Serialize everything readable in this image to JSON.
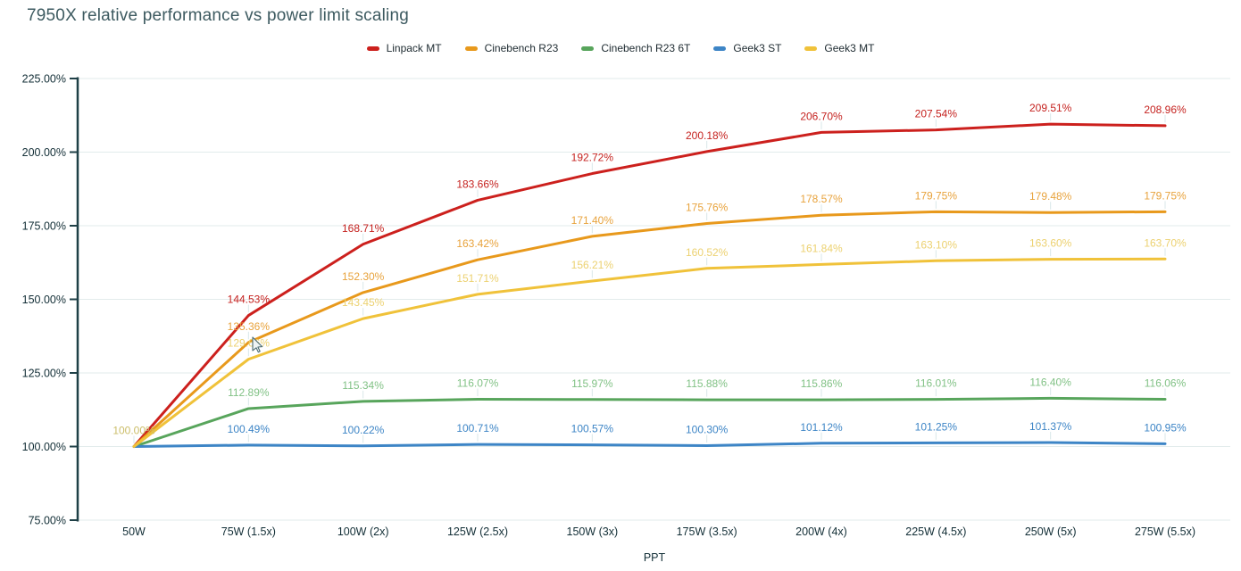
{
  "title": "7950X relative performance vs power limit scaling",
  "chart_data": {
    "type": "line",
    "title": "7950X relative performance vs power limit scaling",
    "xlabel": "PPT",
    "ylabel": "",
    "x_categories": [
      "50W",
      "75W (1.5x)",
      "100W (2x)",
      "125W (2.5x)",
      "150W (3x)",
      "175W (3.5x)",
      "200W (4x)",
      "225W (4.5x)",
      "250W (5x)",
      "275W (5.5x)"
    ],
    "y_tick_labels": [
      "225.00%",
      "200.00%",
      "175.00%",
      "150.00%",
      "125.00%",
      "100.00%",
      "75.00%"
    ],
    "y_tick_values": [
      225,
      200,
      175,
      150,
      125,
      100,
      75
    ],
    "ylim": [
      75,
      225
    ],
    "grid": true,
    "legend_position": "top",
    "series": [
      {
        "name": "Linpack MT",
        "color": "#cc201d",
        "label_color": "#c5221f",
        "values": [
          100.0,
          144.53,
          168.71,
          183.66,
          192.72,
          200.18,
          206.7,
          207.54,
          209.51,
          208.96
        ],
        "labels": [
          "",
          "144.53%",
          "168.71%",
          "183.66%",
          "192.72%",
          "200.18%",
          "206.70%",
          "207.54%",
          "209.51%",
          "208.96%"
        ]
      },
      {
        "name": "Cinebench R23",
        "color": "#e8991c",
        "label_color": "#e8a33d",
        "values": [
          100.0,
          135.36,
          152.3,
          163.42,
          171.4,
          175.76,
          178.57,
          179.75,
          179.48,
          179.75
        ],
        "labels": [
          "",
          "135.36%",
          "152.30%",
          "163.42%",
          "171.40%",
          "175.76%",
          "178.57%",
          "179.75%",
          "179.48%",
          "179.75%"
        ]
      },
      {
        "name": "Cinebench R23 6T",
        "color": "#58a55c",
        "label_color": "#82c286",
        "values": [
          100.0,
          112.89,
          115.34,
          116.07,
          115.97,
          115.88,
          115.86,
          116.01,
          116.4,
          116.06
        ],
        "labels": [
          "",
          "112.89%",
          "115.34%",
          "116.07%",
          "115.97%",
          "115.88%",
          "115.86%",
          "116.01%",
          "116.40%",
          "116.06%"
        ]
      },
      {
        "name": "Geek3 ST",
        "color": "#3d85c6",
        "label_color": "#3d85c6",
        "values": [
          100.0,
          100.49,
          100.22,
          100.71,
          100.57,
          100.3,
          101.12,
          101.25,
          101.37,
          100.95
        ],
        "labels": [
          "",
          "100.49%",
          "100.22%",
          "100.71%",
          "100.57%",
          "100.30%",
          "101.12%",
          "101.25%",
          "101.37%",
          "100.95%"
        ]
      },
      {
        "name": "Geek3 MT",
        "color": "#f0c23a",
        "label_color": "#ecd170",
        "label_overrides": {
          "0": "#cbbd68"
        },
        "values": [
          100.0,
          129.66,
          143.45,
          151.71,
          156.21,
          160.52,
          161.84,
          163.1,
          163.6,
          163.7
        ],
        "labels": [
          "100.00%",
          "129.66%",
          "143.45%",
          "151.71%",
          "156.21%",
          "160.52%",
          "161.84%",
          "163.10%",
          "163.60%",
          "163.70%"
        ]
      }
    ]
  },
  "colors": {
    "background": "#ffffff",
    "title_text": "#3d5a60",
    "legend_text": "#1d2a30",
    "axis_line": "#1f4047",
    "tick_text": "#122e36",
    "gridline": "#e2ebeb",
    "label_leader": "#d9e7e9"
  }
}
